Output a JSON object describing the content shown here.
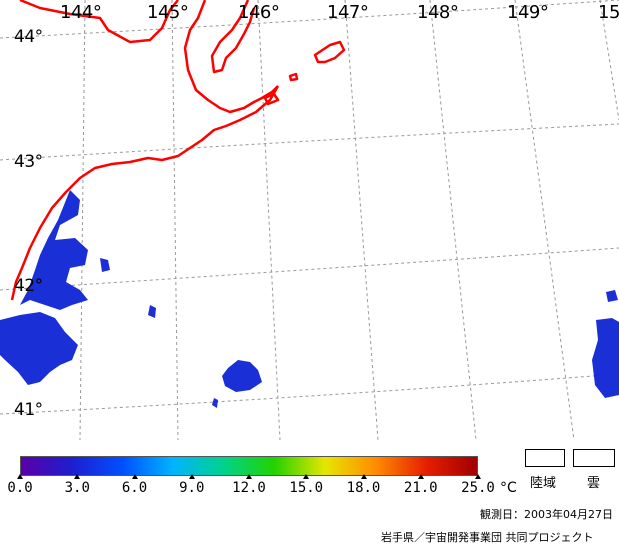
{
  "map": {
    "longitude_labels": [
      "144°",
      "145°",
      "146°",
      "147°",
      "148°",
      "149°",
      "15"
    ],
    "latitude_labels": [
      "44°",
      "43°",
      "42°",
      "41°"
    ],
    "coastline_color": "#ff0000",
    "grid_color": "#999999",
    "sst_fill_color": "#1a2fd6"
  },
  "colorbar": {
    "tick_labels": [
      "0.0",
      "3.0",
      "6.0",
      "9.0",
      "12.0",
      "15.0",
      "18.0",
      "21.0",
      "25.0"
    ],
    "unit": "°C",
    "gradient_colors": [
      "#5a00a8",
      "#1e1ecf",
      "#0050ff",
      "#00b4ff",
      "#00d28c",
      "#23d200",
      "#e6e600",
      "#ff8c00",
      "#e61e00",
      "#a00000"
    ]
  },
  "legend": {
    "land_label": "陸域",
    "cloud_label": "雲"
  },
  "footer": {
    "observation_date": "観測日：2003年04月27日",
    "credit": "岩手県／宇宙開発事業団  共同プロジェクト"
  }
}
